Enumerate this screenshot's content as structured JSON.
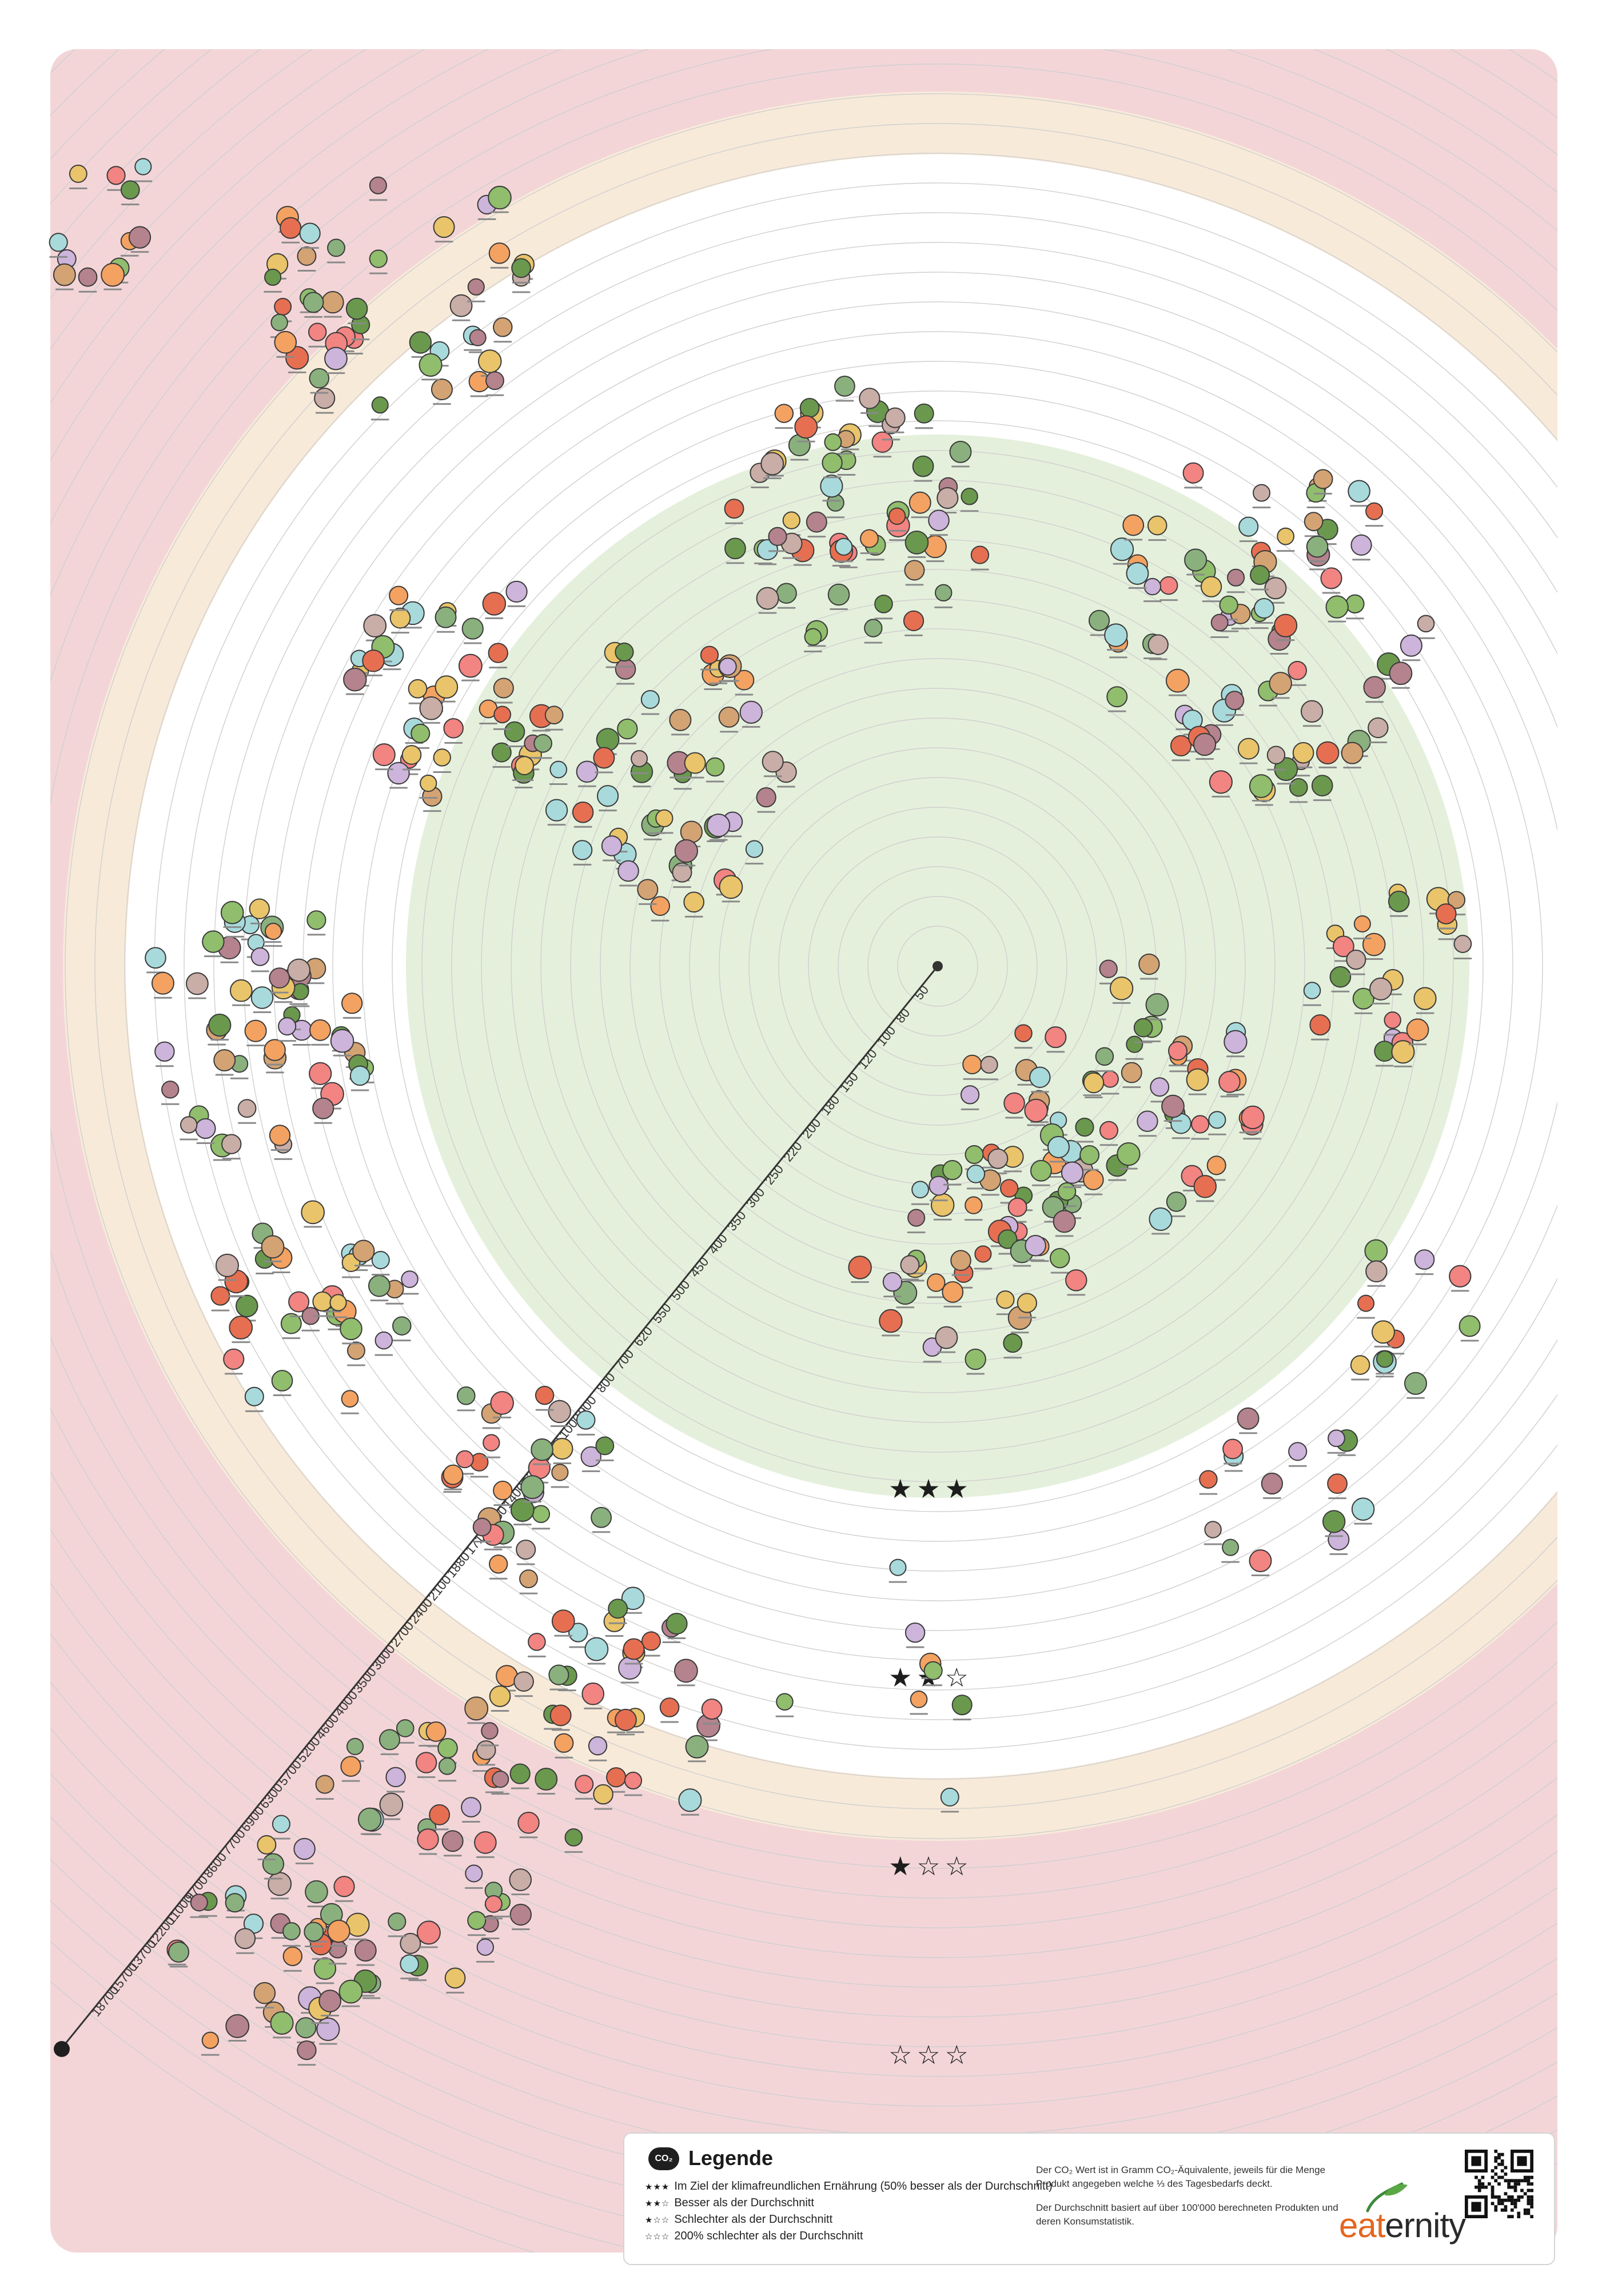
{
  "colors": {
    "outer_zone": "#f3d5d8",
    "mid_zone": "#f8ead9",
    "inner_zone": "#e5f0dc",
    "ring_line": "#cfcfcf",
    "axis": "#333333",
    "brand_accent": "#e3661f"
  },
  "scale": {
    "center_value": 0,
    "ring_values": [
      "50",
      "80",
      "100",
      "120",
      "150",
      "180",
      "200",
      "220",
      "250",
      "300",
      "350",
      "400",
      "450",
      "500",
      "550",
      "620",
      "700",
      "800",
      "900",
      "1000",
      "1100",
      "1250",
      "1400",
      "1550",
      "1710",
      "1880",
      "2100",
      "2400",
      "2700",
      "3000",
      "3500",
      "4000",
      "4600",
      "5200",
      "5700",
      "6300",
      "6900",
      "7700",
      "8600",
      "9700",
      "11000",
      "12200",
      "13700",
      "15700",
      "18700"
    ]
  },
  "ratings": [
    {
      "stars": "★★★"
    },
    {
      "stars": "★★☆"
    },
    {
      "stars": "★☆☆"
    },
    {
      "stars": "☆☆☆"
    }
  ],
  "legend": {
    "badge": "CO₂",
    "title": "Legende",
    "items": [
      {
        "stars": "★★★",
        "text": "Im Ziel der klimafreundlichen Ernährung (50% besser als der Durchschnitt)"
      },
      {
        "stars": "★★☆",
        "text": "Besser als der Durchschnitt"
      },
      {
        "stars": "★☆☆",
        "text": "Schlechter als der Durchschnitt"
      },
      {
        "stars": "☆☆☆",
        "text": "200% schlechter als der Durchschnitt"
      }
    ],
    "note_1": "Der CO₂ Wert ist in Gramm CO₂-Äquivalente, jeweils für die Menge Produkt angegeben welche ⅓ des Tagesbedarfs deckt.",
    "note_2": "Der Durchschnitt basiert auf über 100'000 berechneten Produkten und deren Konsumstatistik."
  },
  "brand": {
    "prefix": "eat",
    "suffix": "ernity"
  }
}
